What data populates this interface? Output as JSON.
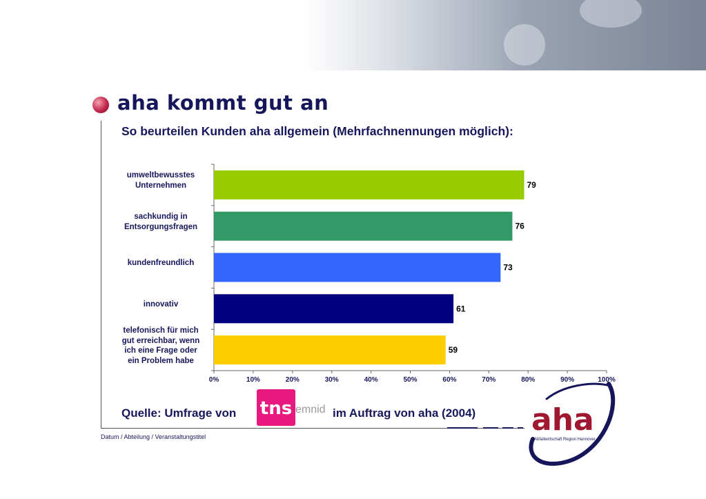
{
  "page": {
    "title": "aha kommt gut an",
    "subtitle": "So beurteilen Kunden aha allgemein (Mehrfachnennungen möglich):",
    "source_prefix": "Quelle: Umfrage von",
    "source_suffix": "im Auftrag von aha (2004)",
    "tns_logo_text": "tns",
    "emnid_text": "emnid",
    "footer": "Datum / Abteilung / Veranstaltungstitel",
    "aha_logo_text": "aha",
    "aha_logo_sub": "Abfallwirtschaft Region Hannover"
  },
  "chart_data": {
    "type": "bar",
    "orientation": "horizontal",
    "categories": [
      "umweltbewusstes\nUnternehmen",
      "sachkundig in\nEntsorgungsfragen",
      "kundenfreundlich",
      "innovativ",
      "telefonisch für mich\ngut erreichbar, wenn\nich eine Frage oder\nein Problem habe"
    ],
    "values": [
      79,
      76,
      73,
      61,
      59
    ],
    "value_labels": [
      "79",
      "76",
      "73",
      "61",
      "59"
    ],
    "colors": [
      "#99cc00",
      "#339966",
      "#3366ff",
      "#000080",
      "#ffcc00"
    ],
    "xlim": [
      0,
      100
    ],
    "x_ticks": [
      "0%",
      "10%",
      "20%",
      "30%",
      "40%",
      "50%",
      "60%",
      "70%",
      "80%",
      "90%",
      "100%"
    ],
    "grid": false,
    "legend": "none"
  }
}
